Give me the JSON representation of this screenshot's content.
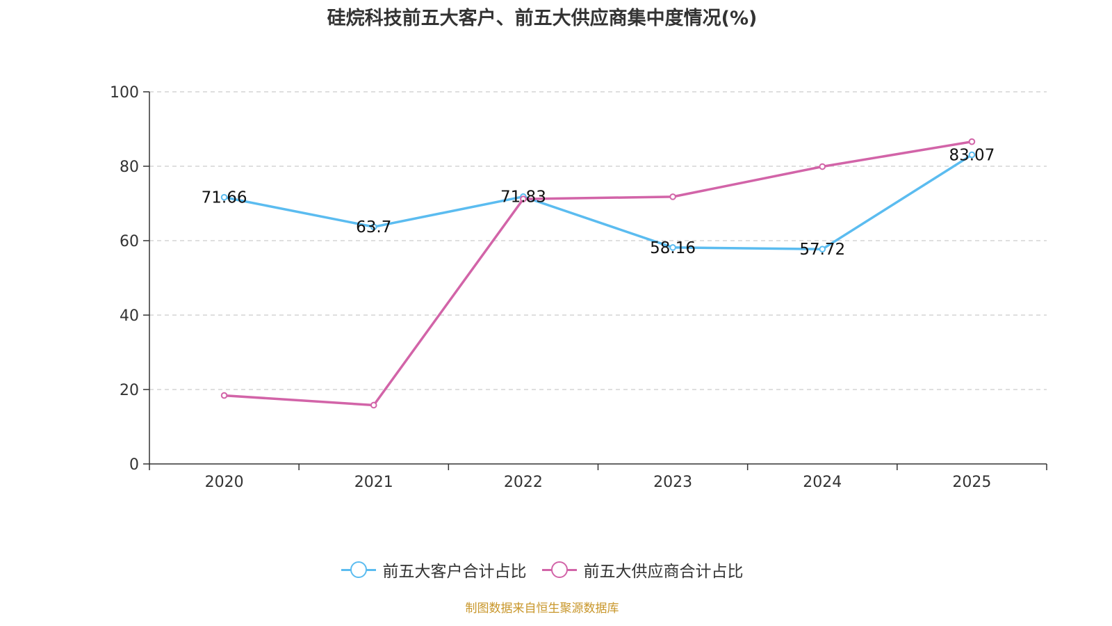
{
  "chart_data": {
    "type": "line",
    "title": "硅烷科技前五大客户、前五大供应商集中度情况(%)",
    "xlabel": "",
    "ylabel": "",
    "categories": [
      "2020",
      "2021",
      "2022",
      "2023",
      "2024",
      "2025"
    ],
    "ylim": [
      0,
      100
    ],
    "yticks": [
      "0",
      "20",
      "40",
      "60",
      "80",
      "100"
    ],
    "grid": true,
    "legend_position": "bottom",
    "series": [
      {
        "name": "前五大客户合计占比",
        "color": "#5bbcf0",
        "values": [
          71.66,
          63.7,
          71.83,
          58.16,
          57.72,
          83.07
        ],
        "labels": [
          "71.66",
          "63.7",
          "71.83",
          "58.16",
          "57.72",
          "83.07"
        ]
      },
      {
        "name": "前五大供应商合计占比",
        "color": "#d264a8",
        "values": [
          18.4,
          15.8,
          71.2,
          71.8,
          79.9,
          86.6
        ]
      }
    ]
  },
  "footer": {
    "source": "制图数据来自恒生聚源数据库"
  }
}
